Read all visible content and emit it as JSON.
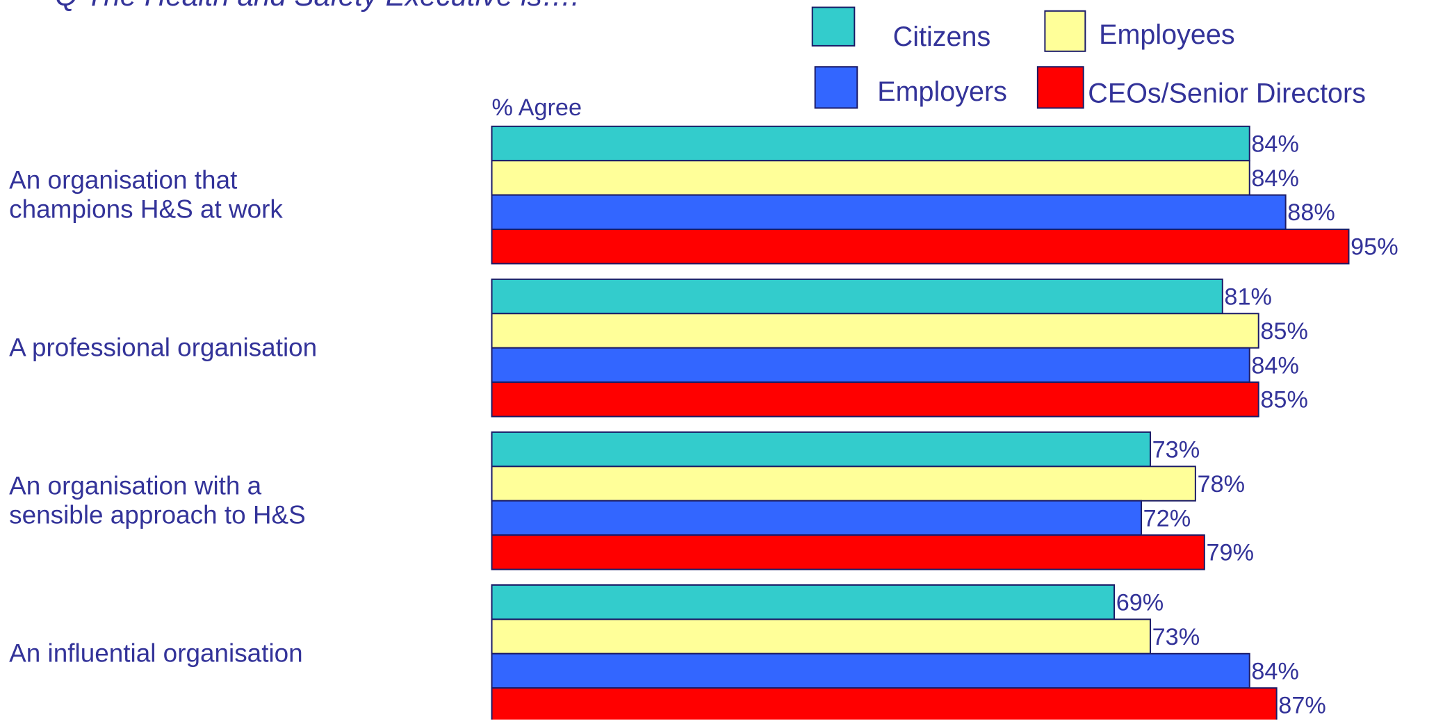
{
  "chart_data": {
    "type": "barh",
    "title": "Q  The Health and Safety Executive is….",
    "axis_label": "% Agree",
    "categories": [
      "An organisation that\nchampions H&S at work",
      "A professional organisation",
      "An organisation with a\nsensible approach to H&S",
      "An influential organisation"
    ],
    "series": [
      {
        "name": "Citizens",
        "color": "#33CCCC",
        "values": [
          84,
          81,
          73,
          69
        ],
        "value_labels": [
          "84%",
          "81%",
          "73%",
          "69%"
        ]
      },
      {
        "name": "Employees",
        "color": "#FFFF99",
        "values": [
          84,
          85,
          78,
          73
        ],
        "value_labels": [
          "84%",
          "85%",
          "78%",
          "73%"
        ]
      },
      {
        "name": "Employers",
        "color": "#3366FF",
        "values": [
          88,
          84,
          72,
          84
        ],
        "value_labels": [
          "88%",
          "84%",
          "72%",
          "84%"
        ]
      },
      {
        "name": "CEOs/Senior Directors",
        "color": "#FF0000",
        "values": [
          95,
          85,
          79,
          87
        ],
        "value_labels": [
          "95%",
          "85%",
          "79%",
          "87%"
        ]
      }
    ],
    "xlim": [
      0,
      100
    ]
  }
}
